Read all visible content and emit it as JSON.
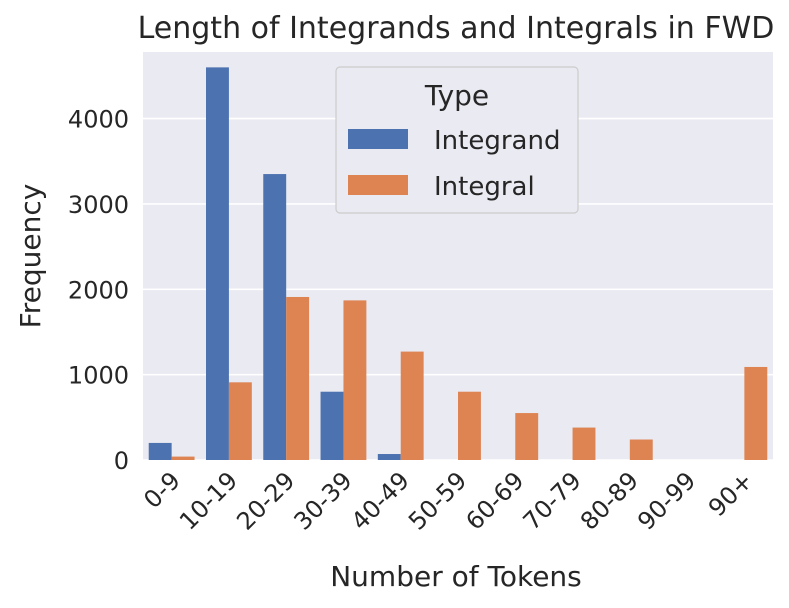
{
  "chart_data": {
    "type": "bar",
    "title": "Length of Integrands and Integrals in FWD",
    "xlabel": "Number of Tokens",
    "ylabel": "Frequency",
    "categories": [
      "0-9",
      "10-19",
      "20-29",
      "30-39",
      "40-49",
      "50-59",
      "60-69",
      "70-79",
      "80-89",
      "90-99",
      "90+"
    ],
    "series": [
      {
        "name": "Integrand",
        "color": "#4c72b0",
        "values": [
          200,
          4600,
          3350,
          800,
          70,
          0,
          0,
          0,
          0,
          0,
          0
        ]
      },
      {
        "name": "Integral",
        "color": "#dd8452",
        "values": [
          40,
          910,
          1910,
          1870,
          1270,
          800,
          550,
          380,
          240,
          0,
          1090
        ]
      }
    ],
    "ylim": [
      0,
      4780
    ],
    "yticks": [
      0,
      1000,
      2000,
      3000,
      4000
    ],
    "grid": true,
    "legend": {
      "title": "Type",
      "placement": "top-center"
    }
  }
}
